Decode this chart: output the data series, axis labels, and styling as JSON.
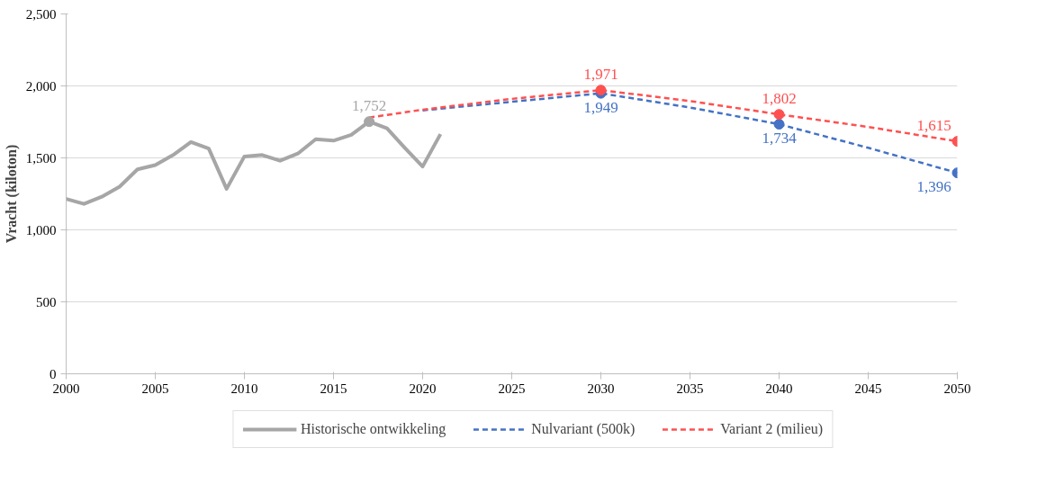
{
  "chart_data": {
    "type": "line",
    "ylabel": "Vracht (kiloton)",
    "xlim": [
      2000,
      2050
    ],
    "xticks": [
      2000,
      2005,
      2010,
      2015,
      2020,
      2025,
      2030,
      2035,
      2040,
      2045,
      2050
    ],
    "ylim": [
      0,
      2500
    ],
    "yticks": [
      {
        "value": 0,
        "label": "0"
      },
      {
        "value": 500,
        "label": "500"
      },
      {
        "value": 1000,
        "label": "1,000"
      },
      {
        "value": 1500,
        "label": "1,500"
      },
      {
        "value": 2000,
        "label": "2,000"
      },
      {
        "value": 2500,
        "label": "2,500"
      }
    ],
    "grid": "y",
    "legend": "bottom",
    "series": [
      {
        "name": "Historische ontwikkeling",
        "color": "#a6a6a6",
        "line_style": "solid",
        "x": [
          2000,
          2001,
          2002,
          2003,
          2004,
          2005,
          2006,
          2007,
          2008,
          2009,
          2010,
          2011,
          2012,
          2013,
          2014,
          2015,
          2016,
          2017,
          2018,
          2019,
          2020,
          2021
        ],
        "values": [
          1215,
          1180,
          1230,
          1300,
          1420,
          1450,
          1520,
          1610,
          1565,
          1285,
          1510,
          1520,
          1480,
          1530,
          1630,
          1620,
          1660,
          1752,
          1705,
          1570,
          1440,
          1665
        ]
      },
      {
        "name": "Nulvariant (500k)",
        "color": "#4472c4",
        "line_style": "dashed",
        "x": [
          2020,
          2025,
          2030,
          2035,
          2040,
          2045,
          2050
        ],
        "values": [
          1830,
          1890,
          1949,
          1850,
          1734,
          1570,
          1396
        ]
      },
      {
        "name": "Variant 2 (milieu)",
        "color": "#ff5050",
        "line_style": "dashed",
        "x": [
          2017,
          2020,
          2025,
          2030,
          2035,
          2040,
          2045,
          2050
        ],
        "values": [
          1780,
          1835,
          1910,
          1971,
          1895,
          1802,
          1715,
          1615
        ]
      },
      {
        "type": "scatter",
        "color": "#a6a6a6",
        "x": [
          2017
        ],
        "values": [
          1752
        ],
        "value_labels": [
          "1,752"
        ]
      },
      {
        "type": "scatter",
        "color": "#4472c4",
        "x": [
          2030,
          2040,
          2050
        ],
        "values": [
          1949,
          1734,
          1396
        ],
        "value_labels": [
          "1,949",
          "1,734",
          "1,396"
        ]
      },
      {
        "type": "scatter",
        "color": "#ff5050",
        "x": [
          2030,
          2040,
          2050
        ],
        "values": [
          1971,
          1802,
          1615
        ],
        "value_labels": [
          "1,971",
          "1,802",
          "1,615"
        ]
      }
    ]
  }
}
